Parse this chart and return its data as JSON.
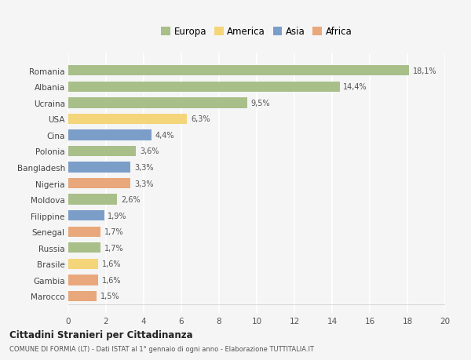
{
  "countries": [
    "Romania",
    "Albania",
    "Ucraina",
    "USA",
    "Cina",
    "Polonia",
    "Bangladesh",
    "Nigeria",
    "Moldova",
    "Filippine",
    "Senegal",
    "Russia",
    "Brasile",
    "Gambia",
    "Marocco"
  ],
  "values": [
    18.1,
    14.4,
    9.5,
    6.3,
    4.4,
    3.6,
    3.3,
    3.3,
    2.6,
    1.9,
    1.7,
    1.7,
    1.6,
    1.6,
    1.5
  ],
  "labels": [
    "18,1%",
    "14,4%",
    "9,5%",
    "6,3%",
    "4,4%",
    "3,6%",
    "3,3%",
    "3,3%",
    "2,6%",
    "1,9%",
    "1,7%",
    "1,7%",
    "1,6%",
    "1,6%",
    "1,5%"
  ],
  "colors": [
    "#a8bf8a",
    "#a8bf8a",
    "#a8bf8a",
    "#f5d57a",
    "#7b9ec9",
    "#a8bf8a",
    "#7b9ec9",
    "#e8a87c",
    "#a8bf8a",
    "#7b9ec9",
    "#e8a87c",
    "#a8bf8a",
    "#f5d57a",
    "#e8a87c",
    "#e8a87c"
  ],
  "legend_labels": [
    "Europa",
    "America",
    "Asia",
    "Africa"
  ],
  "legend_colors": [
    "#a8bf8a",
    "#f5d57a",
    "#7b9ec9",
    "#e8a87c"
  ],
  "xlim": [
    0,
    20
  ],
  "xticks": [
    0,
    2,
    4,
    6,
    8,
    10,
    12,
    14,
    16,
    18,
    20
  ],
  "title1": "Cittadini Stranieri per Cittadinanza",
  "title2": "COMUNE DI FORMIA (LT) - Dati ISTAT al 1° gennaio di ogni anno - Elaborazione TUTTITALIA.IT",
  "background_color": "#f5f5f5",
  "grid_color": "#ffffff",
  "bar_height": 0.65
}
